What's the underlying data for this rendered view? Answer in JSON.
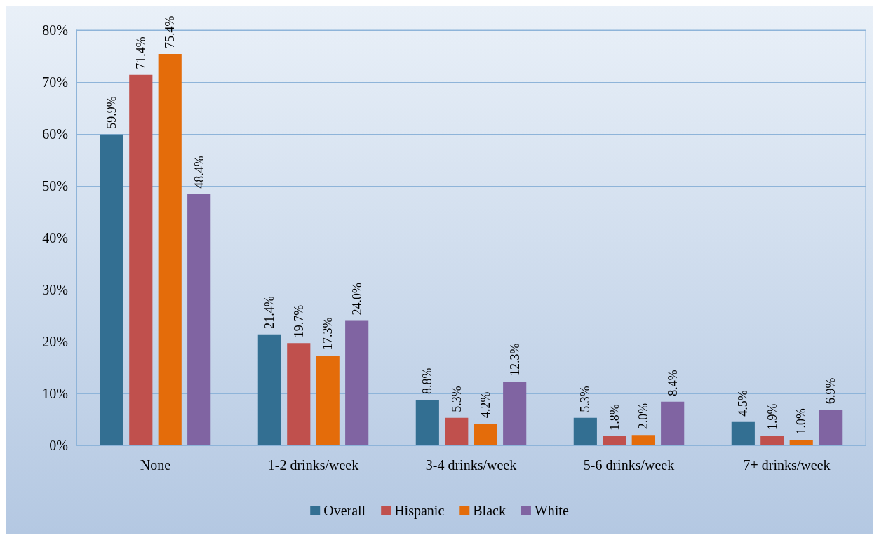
{
  "chart_data": {
    "type": "bar",
    "categories": [
      "None",
      "1-2 drinks/week",
      "3-4 drinks/week",
      "5-6 drinks/week",
      "7+ drinks/week"
    ],
    "series": [
      {
        "name": "Overall",
        "color": "#336f92",
        "values": [
          59.9,
          21.4,
          8.8,
          5.3,
          4.5
        ],
        "value_labels": [
          "59.9%",
          "21.4%",
          "8.8%",
          "5.3%",
          "4.5%"
        ]
      },
      {
        "name": "Hispanic",
        "color": "#c0504d",
        "values": [
          71.4,
          19.7,
          5.3,
          1.8,
          1.9
        ],
        "value_labels": [
          "71.4%",
          "19.7%",
          "5.3%",
          "1.8%",
          "1.9%"
        ]
      },
      {
        "name": "Black",
        "color": "#e46c0a",
        "values": [
          75.4,
          17.3,
          4.2,
          2.0,
          1.0
        ],
        "value_labels": [
          "75.4%",
          "17.3%",
          "4.2%",
          "2.0%",
          "1.0%"
        ]
      },
      {
        "name": "White",
        "color": "#8064a2",
        "values": [
          48.4,
          24.0,
          12.3,
          8.4,
          6.9
        ],
        "value_labels": [
          "48.4%",
          "24.0%",
          "12.3%",
          "8.4%",
          "6.9%"
        ]
      }
    ],
    "ylim": [
      0,
      80
    ],
    "yticks": [
      {
        "value": 0,
        "label": "0%"
      },
      {
        "value": 10,
        "label": "10%"
      },
      {
        "value": 20,
        "label": "20%"
      },
      {
        "value": 30,
        "label": "30%"
      },
      {
        "value": 40,
        "label": "40%"
      },
      {
        "value": 50,
        "label": "50%"
      },
      {
        "value": 60,
        "label": "60%"
      },
      {
        "value": 70,
        "label": "70%"
      },
      {
        "value": 80,
        "label": "80%"
      }
    ],
    "grid": "y",
    "legend": "bottom"
  }
}
